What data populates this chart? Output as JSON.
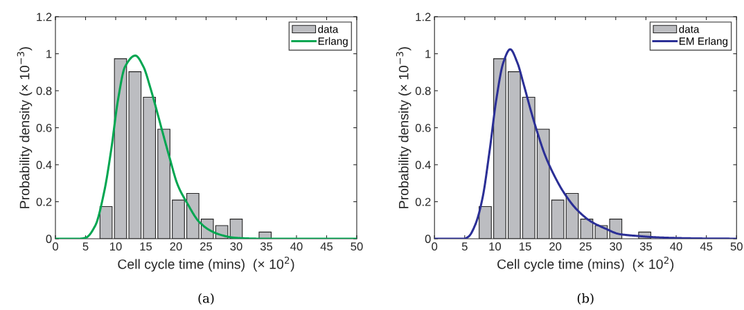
{
  "chart_data": [
    {
      "type": "histogram",
      "annotations": [
        "(a)"
      ],
      "xlabel": "Cell cycle time (mins)  (× 10$^{2}$)",
      "ylabel": "Probability density (× 10$^{−3}$)",
      "bins": [
        7.2,
        9.6,
        12.0,
        14.4,
        16.8,
        19.2,
        21.6,
        24.0,
        26.4,
        28.8,
        31.2,
        33.6,
        36.0
      ],
      "series": [
        {
          "name": "data",
          "type": "histogram",
          "color": "#bcbdc1",
          "values": [
            0.174,
            0.973,
            0.903,
            0.765,
            0.592,
            0.209,
            0.245,
            0.106,
            0.071,
            0.106,
            0,
            0.036
          ]
        },
        {
          "name": "Erlang",
          "type": "line",
          "color": "#00a651",
          "x": [
            0,
            4,
            5,
            6.6,
            8.1,
            9.25,
            10.4,
            11.55,
            13.26,
            14.6,
            15.75,
            16.5,
            17.66,
            18.8,
            20.3,
            21.9,
            23.8,
            25.7,
            27.6,
            29.5,
            31.4,
            34,
            50
          ],
          "values": [
            0,
            0,
            0.005,
            0.07,
            0.255,
            0.48,
            0.754,
            0.93,
            0.99,
            0.93,
            0.816,
            0.73,
            0.59,
            0.455,
            0.29,
            0.19,
            0.093,
            0.044,
            0.019,
            0.006,
            0.002,
            0,
            0
          ]
        }
      ],
      "xlim": [
        0,
        50
      ],
      "xticks": [
        0,
        5,
        10,
        15,
        20,
        25,
        30,
        35,
        40,
        45,
        50
      ],
      "ylim": [
        0,
        1.2
      ],
      "yticks": [
        0,
        0.2,
        0.4,
        0.6,
        0.8,
        1,
        1.2
      ],
      "legend": "top right",
      "grid": false
    },
    {
      "type": "histogram",
      "annotations": [
        "(b)"
      ],
      "xlabel": "Cell cycle time (mins)  (× 10$^{2}$)",
      "ylabel": "Probability density (× 10$^{−3}$)",
      "bins": [
        7.2,
        9.6,
        12.0,
        14.4,
        16.8,
        19.2,
        21.6,
        24.0,
        26.4,
        28.8,
        31.2,
        33.6,
        36.0
      ],
      "series": [
        {
          "name": "data",
          "type": "histogram",
          "color": "#bcbdc1",
          "values": [
            0.174,
            0.973,
            0.903,
            0.765,
            0.592,
            0.209,
            0.245,
            0.106,
            0.071,
            0.106,
            0,
            0.036
          ]
        },
        {
          "name": "EM Erlang",
          "type": "line",
          "color": "#2b2f96",
          "x": [
            0,
            4.9,
            5.65,
            6.8,
            7.95,
            9.1,
            10.24,
            11.4,
            12.53,
            13.7,
            14.8,
            15.97,
            17.1,
            18.26,
            19.8,
            21.3,
            23.6,
            25.9,
            28.2,
            30.6,
            33.5,
            37.1,
            41,
            44.8,
            50
          ],
          "values": [
            0,
            0,
            0.012,
            0.08,
            0.22,
            0.47,
            0.754,
            0.953,
            1.024,
            0.953,
            0.83,
            0.69,
            0.567,
            0.455,
            0.343,
            0.255,
            0.156,
            0.093,
            0.056,
            0.025,
            0.015,
            0.007,
            0.003,
            0.001,
            0
          ]
        }
      ],
      "xlim": [
        0,
        50
      ],
      "xticks": [
        0,
        5,
        10,
        15,
        20,
        25,
        30,
        35,
        40,
        45,
        50
      ],
      "ylim": [
        0,
        1.2
      ],
      "yticks": [
        0,
        0.2,
        0.4,
        0.6,
        0.8,
        1,
        1.2
      ],
      "legend": "top right",
      "grid": false
    }
  ]
}
